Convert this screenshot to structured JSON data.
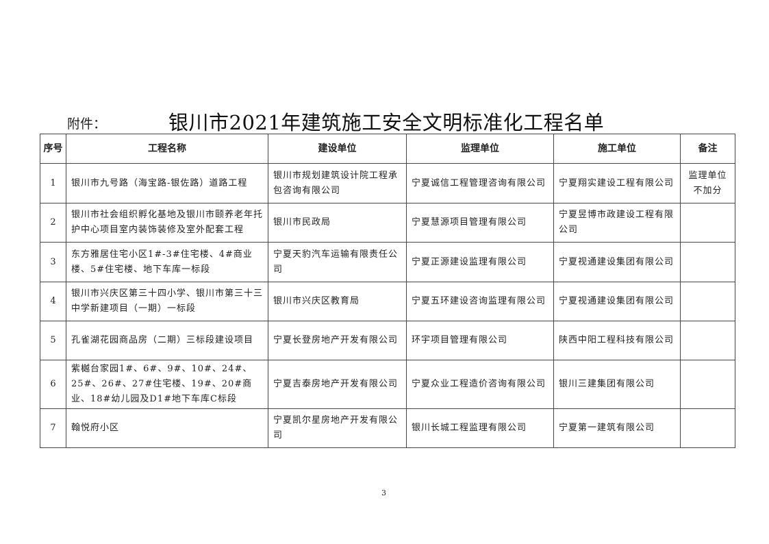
{
  "attachment_label": "附件：",
  "title": "银川市2021年建筑施工安全文明标准化工程名单",
  "table": {
    "headers": [
      "序号",
      "工程名称",
      "建设单位",
      "监理单位",
      "施工单位",
      "备注"
    ],
    "rows": [
      [
        "1",
        "银川市九号路（海宝路-银佐路）道路工程",
        "银川市规划建筑设计院工程承包咨询有限公司",
        "宁夏诚信工程管理咨询有限公司",
        "宁夏翔实建设工程有限公司",
        "监理单位不加分"
      ],
      [
        "2",
        "银川市社会组织孵化基地及银川市颐养老年托护中心项目室内装饰装修及室外配套工程",
        "银川市民政局",
        "宁夏慧源项目管理有限公司",
        "宁夏昱博市政建设工程有限公司",
        ""
      ],
      [
        "3",
        "东方雅居住宅小区1#-3#住宅楼、4#商业楼、5#住宅楼、地下车库一标段",
        "宁夏天豹汽车运输有限责任公司",
        "宁夏正源建设监理有限公司",
        "宁夏视通建设集团有限公司",
        ""
      ],
      [
        "4",
        "银川市兴庆区第三十四小学、银川市第三十三中学新建项目（一期）一标段",
        "银川市兴庆区教育局",
        "宁夏五环建设咨询监理有限公司",
        "宁夏视通建设集团有限公司",
        ""
      ],
      [
        "5",
        "孔雀湖花园商品房（二期）三标段建设项目",
        "宁夏长登房地产开发有限公司",
        "环宇项目管理有限公司",
        "陕西中阳工程科技有限公司",
        ""
      ],
      [
        "6",
        "紫樾台家园1#、6#、9#、10#、24#、25#、26#、27#住宅楼、19#、20#商业、18#幼儿园及D1#地下车库C标段",
        "宁夏吉泰房地产开发有限公司",
        "宁夏众业工程造价咨询有限公司",
        "银川三建集团有限公司",
        ""
      ],
      [
        "7",
        "翰悦府小区",
        "宁夏凯尔星房地产开发有限公司",
        "银川长城工程监理有限公司",
        "宁夏第一建筑有限公司",
        ""
      ]
    ]
  },
  "page_number": "3"
}
